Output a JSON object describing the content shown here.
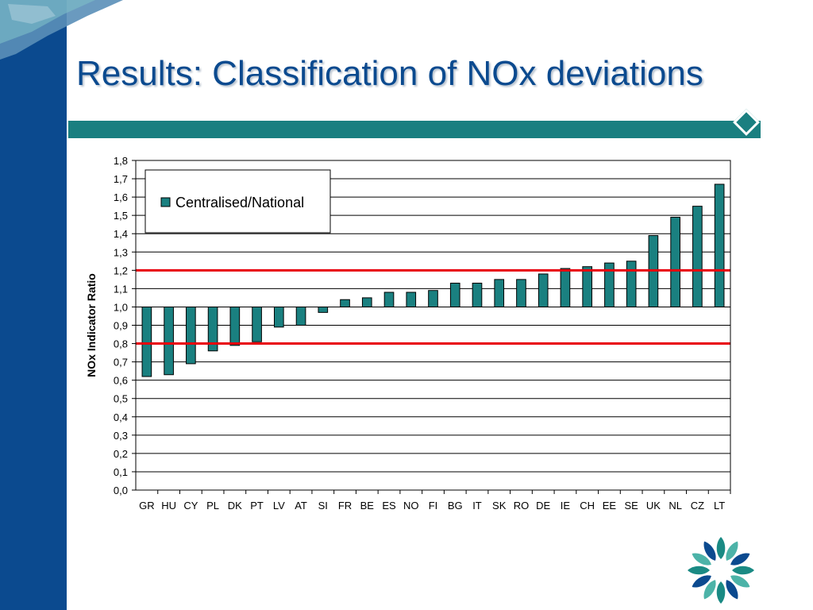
{
  "slide": {
    "title": "Results: Classification of NOx deviations",
    "colors": {
      "brand_blue": "#0b4a8f",
      "teal": "#1a7f80",
      "bar_fill": "#1a8080",
      "threshold_line": "#e8000b"
    }
  },
  "chart_data": {
    "type": "bar",
    "ylabel": "NOx Indicator Ratio",
    "xlabel": "",
    "ylim": [
      0,
      1.8
    ],
    "baseline": 1.0,
    "yticks": [
      "0,0",
      "0,1",
      "0,2",
      "0,3",
      "0,4",
      "0,5",
      "0,6",
      "0,7",
      "0,8",
      "0,9",
      "1,0",
      "1,1",
      "1,2",
      "1,3",
      "1,4",
      "1,5",
      "1,6",
      "1,7",
      "1,8"
    ],
    "categories": [
      "GR",
      "HU",
      "CY",
      "PL",
      "DK",
      "PT",
      "LV",
      "AT",
      "SI",
      "FR",
      "BE",
      "ES",
      "NO",
      "FI",
      "BG",
      "IT",
      "SK",
      "RO",
      "DE",
      "IE",
      "CH",
      "EE",
      "SE",
      "UK",
      "NL",
      "CZ",
      "LT"
    ],
    "series": [
      {
        "name": "Centralised/National",
        "values": [
          0.62,
          0.63,
          0.69,
          0.76,
          0.79,
          0.81,
          0.89,
          0.9,
          0.97,
          1.04,
          1.05,
          1.08,
          1.08,
          1.09,
          1.13,
          1.13,
          1.15,
          1.15,
          1.18,
          1.21,
          1.22,
          1.24,
          1.25,
          1.39,
          1.49,
          1.55,
          1.67
        ]
      }
    ],
    "reference_lines": [
      0.8,
      1.2
    ],
    "legend_position": "top-left",
    "grid": true
  }
}
